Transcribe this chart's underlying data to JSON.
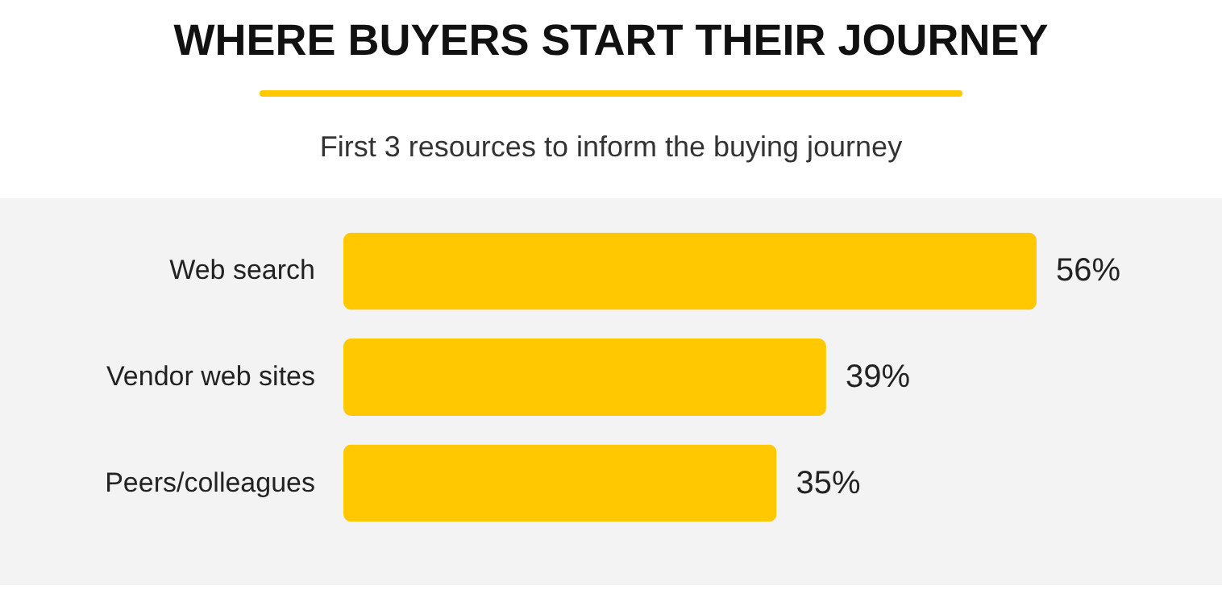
{
  "chart_data": {
    "type": "bar",
    "orientation": "horizontal",
    "title": "WHERE BUYERS START THEIR JOURNEY",
    "subtitle": "First 3 resources to inform the buying journey",
    "categories": [
      "Web search",
      "Vendor web sites",
      "Peers/colleagues"
    ],
    "values": [
      56,
      39,
      35
    ],
    "color": "#ffc800",
    "value_labels": [
      "56%",
      "39%",
      "35%"
    ],
    "tick_labels": "y"
  }
}
